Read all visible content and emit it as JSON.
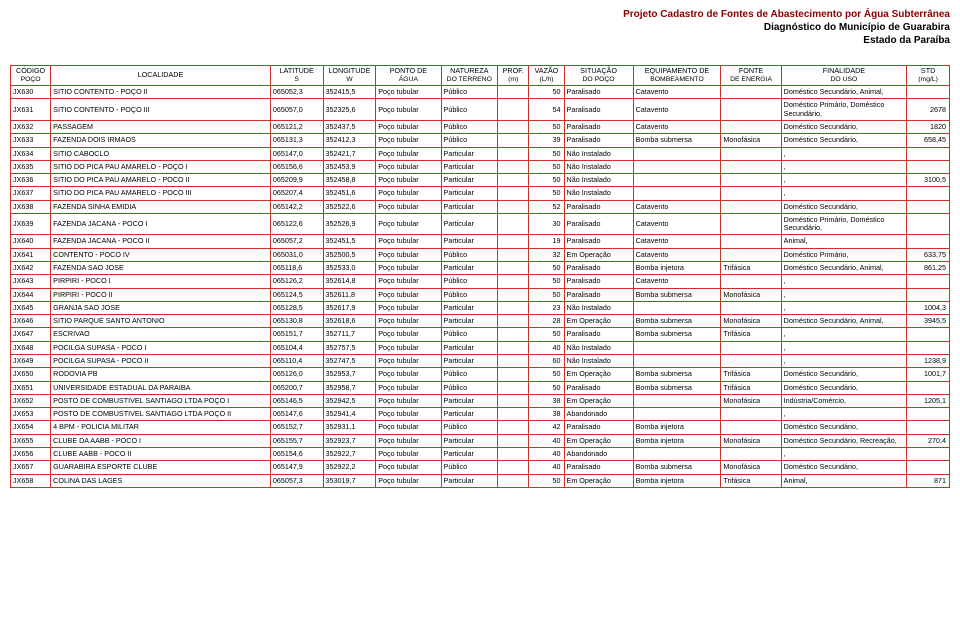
{
  "header": {
    "line1": "Projeto Cadastro de Fontes de Abastecimento por Água Subterrânea",
    "line2": "Diagnóstico do Município de Guarabira",
    "line3": "Estado da Paraíba"
  },
  "columns": {
    "codigo": {
      "top": "CÓDIGO",
      "bottom": "POÇO"
    },
    "local": {
      "top": "LOCALIDADE",
      "bottom": ""
    },
    "lat": {
      "top": "LATITUDE",
      "bottom": "S"
    },
    "lon": {
      "top": "LONGITUDE",
      "bottom": "W"
    },
    "ponto": {
      "top": "PONTO DE",
      "bottom": "ÁGUA"
    },
    "nat": {
      "top": "NATUREZA",
      "bottom": "DO TERRENO"
    },
    "prof": {
      "top": "PROF.",
      "bottom": "(m)"
    },
    "vazao": {
      "top": "VAZÃO",
      "bottom": "(L/h)"
    },
    "sit": {
      "top": "SITUAÇÃO",
      "bottom": "DO POÇO"
    },
    "equip": {
      "top": "EQUIPAMENTO DE",
      "bottom": "BOMBEAMENTO"
    },
    "fonte": {
      "top": "FONTE",
      "bottom": "DE ENERGIA"
    },
    "final": {
      "top": "FINALIDADE",
      "bottom": "DO USO"
    },
    "std": {
      "top": "STD",
      "bottom": "(mg/L)"
    }
  },
  "rows": [
    {
      "codigo": "JX630",
      "local": "SITIO CONTENTO - POÇO II",
      "lat": "065052,3",
      "lon": "352415,5",
      "ponto": "Poço tubular",
      "nat": "Público",
      "prof": "",
      "vazao": "50",
      "sit": "Paralisado",
      "equip": "Catavento",
      "fonte": "",
      "final": "Doméstico Secundário, Animal,",
      "std": ""
    },
    {
      "codigo": "JX631",
      "local": "SITIO CONTENTO - POÇO III",
      "lat": "065057,0",
      "lon": "352325,6",
      "ponto": "Poço tubular",
      "nat": "Público",
      "prof": "",
      "vazao": "54",
      "sit": "Paralisado",
      "equip": "Catavento",
      "fonte": "",
      "final": "Doméstico Primário, Doméstico Secundário,",
      "std": "2678"
    },
    {
      "codigo": "JX632",
      "local": "PASSAGEM",
      "lat": "065121,2",
      "lon": "352437,5",
      "ponto": "Poço tubular",
      "nat": "Público",
      "prof": "",
      "vazao": "50",
      "sit": "Paralisado",
      "equip": "Catavento",
      "fonte": "",
      "final": "Doméstico Secundário,",
      "std": "1820"
    },
    {
      "codigo": "JX633",
      "local": "FAZENDA DOIS IRMAOS",
      "lat": "065131,3",
      "lon": "352412,3",
      "ponto": "Poço tubular",
      "nat": "Público",
      "prof": "",
      "vazao": "39",
      "sit": "Paralisado",
      "equip": "Bomba submersa",
      "fonte": "Monofásica",
      "final": "Doméstico Secundário,",
      "std": "658,45"
    },
    {
      "codigo": "JX634",
      "local": "SITIO CABOCLO",
      "lat": "065147,0",
      "lon": "352421,7",
      "ponto": "Poço tubular",
      "nat": "Particular",
      "prof": "",
      "vazao": "50",
      "sit": "Não Instalado",
      "equip": "",
      "fonte": "",
      "final": ",",
      "std": ""
    },
    {
      "codigo": "JX635",
      "local": "SITIO DO PICA PAU AMARELO - POÇO I",
      "lat": "065156,6",
      "lon": "352453,9",
      "ponto": "Poço tubular",
      "nat": "Particular",
      "prof": "",
      "vazao": "50",
      "sit": "Não Instalado",
      "equip": "",
      "fonte": "",
      "final": ",",
      "std": ""
    },
    {
      "codigo": "JX636",
      "local": "SITIO DO PICA PAU AMARELO - POCO II",
      "lat": "065209,9",
      "lon": "352458,8",
      "ponto": "Poço tubular",
      "nat": "Particular",
      "prof": "",
      "vazao": "50",
      "sit": "Não Instalado",
      "equip": "",
      "fonte": "",
      "final": ",",
      "std": "3100,5"
    },
    {
      "codigo": "JX637",
      "local": "SITIO DO PICA PAU AMARELO - POCO III",
      "lat": "065207,4",
      "lon": "352451,6",
      "ponto": "Poço tubular",
      "nat": "Particular",
      "prof": "",
      "vazao": "50",
      "sit": "Não Instalado",
      "equip": "",
      "fonte": "",
      "final": ",",
      "std": ""
    },
    {
      "codigo": "JX638",
      "local": "FAZENDA SINHA EMIDIA",
      "lat": "065142,2",
      "lon": "352522,6",
      "ponto": "Poço tubular",
      "nat": "Particular",
      "prof": "",
      "vazao": "52",
      "sit": "Paralisado",
      "equip": "Catavento",
      "fonte": "",
      "final": "Doméstico Secundário,",
      "std": ""
    },
    {
      "codigo": "JX639",
      "local": "FAZENDA JACANA - POCO I",
      "lat": "065122,6",
      "lon": "352526,9",
      "ponto": "Poço tubular",
      "nat": "Particular",
      "prof": "",
      "vazao": "30",
      "sit": "Paralisado",
      "equip": "Catavento",
      "fonte": "",
      "final": "Doméstico Primário, Doméstico Secundário,",
      "std": ""
    },
    {
      "codigo": "JX640",
      "local": "FAZENDA JACANA - POCO II",
      "lat": "065057,2",
      "lon": "352451,5",
      "ponto": "Poço tubular",
      "nat": "Particular",
      "prof": "",
      "vazao": "19",
      "sit": "Paralisado",
      "equip": "Catavento",
      "fonte": "",
      "final": "Animal,",
      "std": ""
    },
    {
      "codigo": "JX641",
      "local": "CONTENTO - POCO IV",
      "lat": "065031,0",
      "lon": "352500,5",
      "ponto": "Poço tubular",
      "nat": "Público",
      "prof": "",
      "vazao": "32",
      "sit": "Em Operação",
      "equip": "Catavento",
      "fonte": "",
      "final": "Doméstico Primário,",
      "std": "633,75"
    },
    {
      "codigo": "JX642",
      "local": "FAZENDA SAO JOSE",
      "lat": "065118,6",
      "lon": "352533,0",
      "ponto": "Poço tubular",
      "nat": "Particular",
      "prof": "",
      "vazao": "50",
      "sit": "Paralisado",
      "equip": "Bomba injetora",
      "fonte": "Trifásica",
      "final": "Doméstico Secundário, Animal,",
      "std": "861,25"
    },
    {
      "codigo": "JX643",
      "local": "PIRPIRI - POCO I",
      "lat": "065126,2",
      "lon": "352614,8",
      "ponto": "Poço tubular",
      "nat": "Público",
      "prof": "",
      "vazao": "50",
      "sit": "Paralisado",
      "equip": "Catavento",
      "fonte": "",
      "final": ",",
      "std": ""
    },
    {
      "codigo": "JX644",
      "local": "PIRPIRI - POCO II",
      "lat": "065124,5",
      "lon": "352611,8",
      "ponto": "Poço tubular",
      "nat": "Público",
      "prof": "",
      "vazao": "50",
      "sit": "Paralisado",
      "equip": "Bomba submersa",
      "fonte": "Monofásica",
      "final": ",",
      "std": ""
    },
    {
      "codigo": "JX645",
      "local": "GRANJA SAO JOSE",
      "lat": "065128,5",
      "lon": "352617,9",
      "ponto": "Poço tubular",
      "nat": "Particular",
      "prof": "",
      "vazao": "23",
      "sit": "Não Instalado",
      "equip": "",
      "fonte": "",
      "final": ",",
      "std": "1004,3"
    },
    {
      "codigo": "JX646",
      "local": "SITIO PARQUE SANTO ANTONIO",
      "lat": "065130,8",
      "lon": "352618,6",
      "ponto": "Poço tubular",
      "nat": "Particular",
      "prof": "",
      "vazao": "28",
      "sit": "Em Operação",
      "equip": "Bomba submersa",
      "fonte": "Monofásica",
      "final": "Doméstico Secundário, Animal,",
      "std": "3945,5"
    },
    {
      "codigo": "JX647",
      "local": "ESCRIVAO",
      "lat": "065151,7",
      "lon": "352711,7",
      "ponto": "Poço tubular",
      "nat": "Público",
      "prof": "",
      "vazao": "50",
      "sit": "Paralisado",
      "equip": "Bomba submersa",
      "fonte": "Trifásica",
      "final": ",",
      "std": ""
    },
    {
      "codigo": "JX648",
      "local": "POCILGA SUPASA - POCO I",
      "lat": "065104,4",
      "lon": "352757,5",
      "ponto": "Poço tubular",
      "nat": "Particular",
      "prof": "",
      "vazao": "40",
      "sit": "Não Instalado",
      "equip": "",
      "fonte": "",
      "final": ",",
      "std": ""
    },
    {
      "codigo": "JX649",
      "local": "POCILGA SUPASA - POCO II",
      "lat": "065110,4",
      "lon": "352747,5",
      "ponto": "Poço tubular",
      "nat": "Particular",
      "prof": "",
      "vazao": "60",
      "sit": "Não Instalado",
      "equip": "",
      "fonte": "",
      "final": ",",
      "std": "1238,9"
    },
    {
      "codigo": "JX650",
      "local": "RODOVIA PB",
      "lat": "065126,0",
      "lon": "352953,7",
      "ponto": "Poço tubular",
      "nat": "Público",
      "prof": "",
      "vazao": "50",
      "sit": "Em Operação",
      "equip": "Bomba submersa",
      "fonte": "Trifásica",
      "final": "Doméstico Secundário,",
      "std": "1001,7"
    },
    {
      "codigo": "JX651",
      "local": "UNIVERSIDADE ESTADUAL DA PARAIBA",
      "lat": "065200,7",
      "lon": "352958,7",
      "ponto": "Poço tubular",
      "nat": "Público",
      "prof": "",
      "vazao": "50",
      "sit": "Paralisado",
      "equip": "Bomba submersa",
      "fonte": "Trifásica",
      "final": "Doméstico Secundário,",
      "std": ""
    },
    {
      "codigo": "JX652",
      "local": "POSTO DE COMBUSTIVEL SANTIAGO LTDA POÇO I",
      "lat": "065146,5",
      "lon": "352942,5",
      "ponto": "Poço tubular",
      "nat": "Particular",
      "prof": "",
      "vazao": "38",
      "sit": "Em Operação",
      "equip": "",
      "fonte": "Monofásica",
      "final": "Indústria/Comércio,",
      "std": "1205,1"
    },
    {
      "codigo": "JX653",
      "local": "POSTO DE COMBUSTIVEL SANTIAGO LTDA POÇO II",
      "lat": "065147,6",
      "lon": "352941,4",
      "ponto": "Poço tubular",
      "nat": "Particular",
      "prof": "",
      "vazao": "38",
      "sit": "Abandonado",
      "equip": "",
      "fonte": "",
      "final": ",",
      "std": ""
    },
    {
      "codigo": "JX654",
      "local": "4 BPM - POLICIA MILITAR",
      "lat": "065152,7",
      "lon": "352931,1",
      "ponto": "Poço tubular",
      "nat": "Público",
      "prof": "",
      "vazao": "42",
      "sit": "Paralisado",
      "equip": "Bomba injetora",
      "fonte": "",
      "final": "Doméstico Secundário,",
      "std": ""
    },
    {
      "codigo": "JX655",
      "local": "CLUBE DA AABB - POCO I",
      "lat": "065155,7",
      "lon": "352923,7",
      "ponto": "Poço tubular",
      "nat": "Particular",
      "prof": "",
      "vazao": "40",
      "sit": "Em Operação",
      "equip": "Bomba injetora",
      "fonte": "Monofásica",
      "final": "Doméstico Secundário, Recreação,",
      "std": "270,4"
    },
    {
      "codigo": "JX656",
      "local": "CLUBE AABB - POCO II",
      "lat": "065154,6",
      "lon": "352922,7",
      "ponto": "Poço tubular",
      "nat": "Particular",
      "prof": "",
      "vazao": "40",
      "sit": "Abandonado",
      "equip": "",
      "fonte": "",
      "final": ",",
      "std": ""
    },
    {
      "codigo": "JX657",
      "local": "GUARABIRA ESPORTE CLUBE",
      "lat": "065147,9",
      "lon": "352922,2",
      "ponto": "Poço tubular",
      "nat": "Público",
      "prof": "",
      "vazao": "40",
      "sit": "Paralisado",
      "equip": "Bomba submersa",
      "fonte": "Monofásica",
      "final": "Doméstico Secundário,",
      "std": ""
    },
    {
      "codigo": "JX658",
      "local": "COLINA DAS LAGES",
      "lat": "065057,3",
      "lon": "353019,7",
      "ponto": "Poço tubular",
      "nat": "Particular",
      "prof": "",
      "vazao": "50",
      "sit": "Em Operação",
      "equip": "Bomba injetora",
      "fonte": "Trifásica",
      "final": "Animal,",
      "std": "871"
    }
  ]
}
